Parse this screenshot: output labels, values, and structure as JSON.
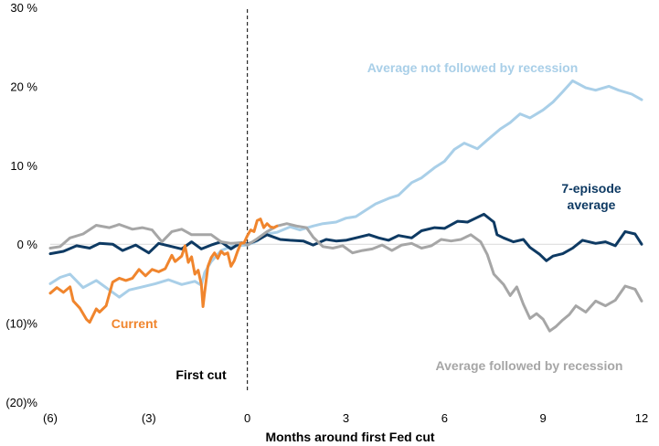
{
  "chart_data": {
    "type": "line",
    "title": "",
    "xlabel": "Months around first Fed cut",
    "ylabel": "",
    "xlim": [
      -6,
      12
    ],
    "ylim": [
      -20,
      30
    ],
    "x_ticks": [
      {
        "value": -6,
        "label": "(6)"
      },
      {
        "value": -3,
        "label": "(3)"
      },
      {
        "value": 0,
        "label": "0"
      },
      {
        "value": 3,
        "label": "3"
      },
      {
        "value": 6,
        "label": "6"
      },
      {
        "value": 9,
        "label": "9"
      },
      {
        "value": 12,
        "label": "12"
      }
    ],
    "y_ticks": [
      {
        "value": 30,
        "label": "30 %"
      },
      {
        "value": 20,
        "label": "20 %"
      },
      {
        "value": 10,
        "label": "10 %"
      },
      {
        "value": 0,
        "label": "0 %"
      },
      {
        "value": -10,
        "label": "(10)%"
      },
      {
        "value": -20,
        "label": "(20)%"
      }
    ],
    "vline": {
      "x": 0,
      "label": "First cut"
    },
    "colors": {
      "not_recession": "#a9cfe8",
      "seven_episode": "#0e3a63",
      "recession": "#a6a6a6",
      "current": "#f0852d",
      "zero_line": "#d9d9d9"
    },
    "series": [
      {
        "name": "Average not followed by recession",
        "label": "Average not followed by recession",
        "color": "#a9cfe8",
        "points": [
          [
            -6,
            -5
          ],
          [
            -5.7,
            -4.2
          ],
          [
            -5.4,
            -3.8
          ],
          [
            -5,
            -5.5
          ],
          [
            -4.6,
            -4.6
          ],
          [
            -4.2,
            -5.8
          ],
          [
            -3.9,
            -6.7
          ],
          [
            -3.6,
            -5.8
          ],
          [
            -3.2,
            -5.4
          ],
          [
            -2.8,
            -5
          ],
          [
            -2.4,
            -4.5
          ],
          [
            -2,
            -5.1
          ],
          [
            -1.6,
            -4.7
          ],
          [
            -1.4,
            -5.2
          ],
          [
            -1.3,
            -3.6
          ],
          [
            -1.1,
            -2.2
          ],
          [
            -0.8,
            -0.8
          ],
          [
            -0.5,
            -0.3
          ],
          [
            -0.3,
            -0.2
          ],
          [
            0,
            -0.1
          ],
          [
            0.3,
            0.4
          ],
          [
            0.6,
            1.3
          ],
          [
            0.9,
            1.5
          ],
          [
            1.3,
            2.2
          ],
          [
            1.6,
            1.8
          ],
          [
            2,
            2.3
          ],
          [
            2.3,
            2.6
          ],
          [
            2.7,
            2.8
          ],
          [
            3,
            3.3
          ],
          [
            3.3,
            3.5
          ],
          [
            3.6,
            4.3
          ],
          [
            3.9,
            5.1
          ],
          [
            4.3,
            5.8
          ],
          [
            4.6,
            6.2
          ],
          [
            5,
            7.8
          ],
          [
            5.3,
            8.4
          ],
          [
            5.7,
            9.7
          ],
          [
            6,
            10.5
          ],
          [
            6.3,
            12
          ],
          [
            6.6,
            12.8
          ],
          [
            7,
            12.1
          ],
          [
            7.3,
            13.2
          ],
          [
            7.7,
            14.6
          ],
          [
            8,
            15.4
          ],
          [
            8.3,
            16.5
          ],
          [
            8.6,
            16
          ],
          [
            9,
            17
          ],
          [
            9.3,
            18
          ],
          [
            9.6,
            19.3
          ],
          [
            9.9,
            20.7
          ],
          [
            10.3,
            19.8
          ],
          [
            10.6,
            19.5
          ],
          [
            11,
            20
          ],
          [
            11.3,
            19.5
          ],
          [
            11.7,
            19
          ],
          [
            12,
            18.3
          ]
        ]
      },
      {
        "name": "7-episode average",
        "label_lines": [
          "7-episode",
          "average"
        ],
        "color": "#0e3a63",
        "points": [
          [
            -6,
            -1.2
          ],
          [
            -5.6,
            -0.9
          ],
          [
            -5.2,
            -0.2
          ],
          [
            -4.8,
            -0.5
          ],
          [
            -4.5,
            0.1
          ],
          [
            -4.1,
            0
          ],
          [
            -3.8,
            -0.8
          ],
          [
            -3.4,
            -0.1
          ],
          [
            -3,
            -1.1
          ],
          [
            -2.7,
            0.1
          ],
          [
            -2.3,
            -0.3
          ],
          [
            -2,
            -0.6
          ],
          [
            -1.7,
            0.3
          ],
          [
            -1.4,
            -0.6
          ],
          [
            -1.1,
            -0.1
          ],
          [
            -0.8,
            0.3
          ],
          [
            -0.5,
            -0.6
          ],
          [
            -0.2,
            0.2
          ],
          [
            0,
            0
          ],
          [
            0.3,
            0.5
          ],
          [
            0.6,
            1.2
          ],
          [
            1,
            0.6
          ],
          [
            1.3,
            0.5
          ],
          [
            1.7,
            0.4
          ],
          [
            2,
            -0.1
          ],
          [
            2.4,
            0.6
          ],
          [
            2.7,
            0.4
          ],
          [
            3,
            0.5
          ],
          [
            3.3,
            0.8
          ],
          [
            3.7,
            1.2
          ],
          [
            4,
            0.8
          ],
          [
            4.3,
            0.5
          ],
          [
            4.6,
            1.1
          ],
          [
            5,
            0.8
          ],
          [
            5.3,
            1.7
          ],
          [
            5.7,
            2.1
          ],
          [
            6,
            2
          ],
          [
            6.4,
            2.9
          ],
          [
            6.7,
            2.8
          ],
          [
            7,
            3.4
          ],
          [
            7.2,
            3.8
          ],
          [
            7.5,
            2.8
          ],
          [
            7.6,
            1.2
          ],
          [
            7.8,
            0.8
          ],
          [
            8.1,
            0.3
          ],
          [
            8.4,
            0.6
          ],
          [
            8.6,
            -0.4
          ],
          [
            8.9,
            -1.3
          ],
          [
            9.1,
            -2.1
          ],
          [
            9.3,
            -1.5
          ],
          [
            9.6,
            -1.2
          ],
          [
            9.9,
            -0.5
          ],
          [
            10.2,
            0.5
          ],
          [
            10.6,
            0.1
          ],
          [
            10.9,
            0.3
          ],
          [
            11.2,
            -0.2
          ],
          [
            11.5,
            1.6
          ],
          [
            11.8,
            1.3
          ],
          [
            12,
            0
          ]
        ]
      },
      {
        "name": "Average followed by recession",
        "label": "Average followed by recession",
        "color": "#a6a6a6",
        "points": [
          [
            -6,
            -0.5
          ],
          [
            -5.7,
            -0.3
          ],
          [
            -5.4,
            0.8
          ],
          [
            -5,
            1.3
          ],
          [
            -4.6,
            2.4
          ],
          [
            -4.2,
            2.1
          ],
          [
            -3.9,
            2.5
          ],
          [
            -3.5,
            1.9
          ],
          [
            -3.2,
            2.1
          ],
          [
            -2.9,
            1.8
          ],
          [
            -2.6,
            0.3
          ],
          [
            -2.3,
            1.6
          ],
          [
            -2,
            1.9
          ],
          [
            -1.7,
            1.2
          ],
          [
            -1.4,
            1.2
          ],
          [
            -1.1,
            1.2
          ],
          [
            -0.8,
            0.3
          ],
          [
            -0.5,
            0.1
          ],
          [
            -0.2,
            0.2
          ],
          [
            0,
            -0.1
          ],
          [
            0.3,
            0.7
          ],
          [
            0.6,
            1.6
          ],
          [
            0.9,
            2.3
          ],
          [
            1.2,
            2.6
          ],
          [
            1.5,
            2.3
          ],
          [
            1.8,
            2.1
          ],
          [
            2,
            0.9
          ],
          [
            2.3,
            -0.3
          ],
          [
            2.6,
            -0.5
          ],
          [
            2.9,
            -0.2
          ],
          [
            3.2,
            -1.1
          ],
          [
            3.5,
            -0.8
          ],
          [
            3.8,
            -0.6
          ],
          [
            4.1,
            -0.1
          ],
          [
            4.4,
            -0.8
          ],
          [
            4.7,
            -0.1
          ],
          [
            5,
            0.1
          ],
          [
            5.3,
            -0.5
          ],
          [
            5.6,
            -0.2
          ],
          [
            5.9,
            0.6
          ],
          [
            6.2,
            0.4
          ],
          [
            6.5,
            0.6
          ],
          [
            6.8,
            1.2
          ],
          [
            7.1,
            0.3
          ],
          [
            7.3,
            -1.3
          ],
          [
            7.5,
            -3.8
          ],
          [
            7.8,
            -5.1
          ],
          [
            8,
            -6.5
          ],
          [
            8.2,
            -5.4
          ],
          [
            8.4,
            -7.6
          ],
          [
            8.6,
            -9.4
          ],
          [
            8.8,
            -8.8
          ],
          [
            9,
            -9.5
          ],
          [
            9.2,
            -11
          ],
          [
            9.4,
            -10.4
          ],
          [
            9.6,
            -9.6
          ],
          [
            9.8,
            -8.9
          ],
          [
            10,
            -7.8
          ],
          [
            10.3,
            -8.6
          ],
          [
            10.6,
            -7.2
          ],
          [
            10.9,
            -7.8
          ],
          [
            11.2,
            -7.1
          ],
          [
            11.5,
            -5.3
          ],
          [
            11.8,
            -5.7
          ],
          [
            12,
            -7.2
          ]
        ]
      },
      {
        "name": "Current",
        "label": "Current",
        "color": "#f0852d",
        "points": [
          [
            -6,
            -6.2
          ],
          [
            -5.8,
            -5.5
          ],
          [
            -5.6,
            -6.1
          ],
          [
            -5.4,
            -5.4
          ],
          [
            -5.3,
            -7.2
          ],
          [
            -5.1,
            -8.1
          ],
          [
            -4.9,
            -9.5
          ],
          [
            -4.8,
            -9.9
          ],
          [
            -4.6,
            -8.2
          ],
          [
            -4.5,
            -8.6
          ],
          [
            -4.3,
            -7.8
          ],
          [
            -4.2,
            -6.3
          ],
          [
            -4.1,
            -4.8
          ],
          [
            -3.9,
            -4.3
          ],
          [
            -3.7,
            -4.6
          ],
          [
            -3.5,
            -4.3
          ],
          [
            -3.3,
            -3.2
          ],
          [
            -3.1,
            -4
          ],
          [
            -2.9,
            -3.2
          ],
          [
            -2.7,
            -3.5
          ],
          [
            -2.5,
            -3.1
          ],
          [
            -2.3,
            -1.4
          ],
          [
            -2.2,
            -2.2
          ],
          [
            -2,
            -1.5
          ],
          [
            -1.9,
            -0.2
          ],
          [
            -1.8,
            -2.3
          ],
          [
            -1.7,
            -1.6
          ],
          [
            -1.6,
            -3.8
          ],
          [
            -1.5,
            -3.3
          ],
          [
            -1.4,
            -5.1
          ],
          [
            -1.35,
            -7.9
          ],
          [
            -1.3,
            -6.1
          ],
          [
            -1.2,
            -2.8
          ],
          [
            -1.1,
            -1.7
          ],
          [
            -1,
            -1.1
          ],
          [
            -0.9,
            -1.8
          ],
          [
            -0.8,
            -0.9
          ],
          [
            -0.7,
            -1.3
          ],
          [
            -0.6,
            -1.1
          ],
          [
            -0.5,
            -2.8
          ],
          [
            -0.4,
            -2.1
          ],
          [
            -0.3,
            -0.9
          ],
          [
            -0.2,
            0.1
          ],
          [
            -0.1,
            0.2
          ],
          [
            0,
            1.1
          ],
          [
            0.1,
            1.8
          ],
          [
            0.2,
            1.6
          ],
          [
            0.3,
            3
          ],
          [
            0.4,
            3.2
          ],
          [
            0.5,
            2.1
          ],
          [
            0.6,
            2.6
          ],
          [
            0.7,
            2.2
          ],
          [
            0.8,
            2.1
          ],
          [
            0.9,
            2.3
          ]
        ]
      }
    ]
  }
}
